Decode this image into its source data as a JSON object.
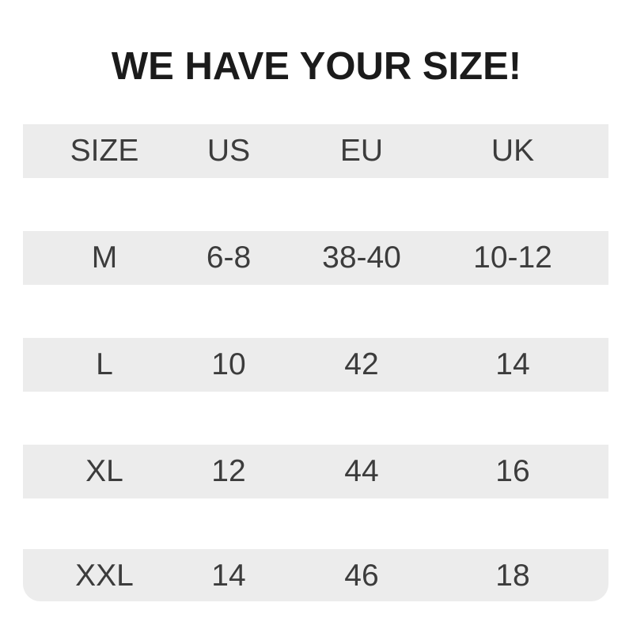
{
  "title": "WE HAVE YOUR SIZE!",
  "table": {
    "headers": [
      "SIZE",
      "US",
      "EU",
      "UK"
    ],
    "rows": [
      [
        "M",
        "6-8",
        "38-40",
        "10-12"
      ],
      [
        "L",
        "10",
        "42",
        "14"
      ],
      [
        "XL",
        "12",
        "44",
        "16"
      ],
      [
        "XXL",
        "14",
        "46",
        "18"
      ]
    ]
  },
  "colors": {
    "band": "#ececec",
    "text": "#3c3c3c",
    "title": "#1b1b1b"
  }
}
